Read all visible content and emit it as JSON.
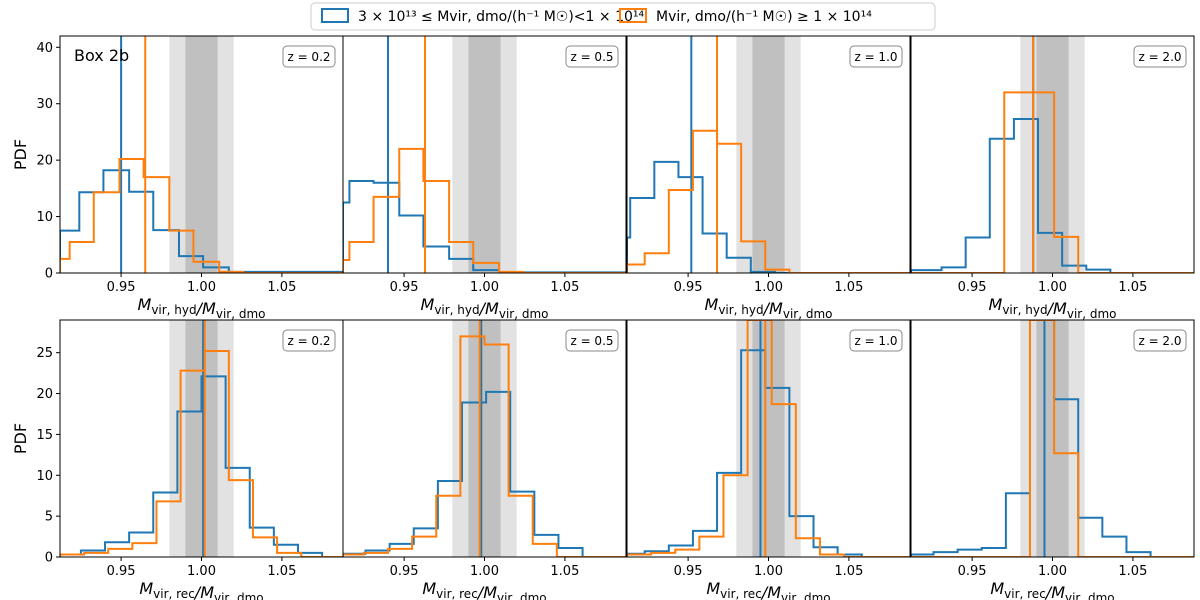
{
  "figure": {
    "box_label": "Box 2b",
    "bands": {
      "inner": [
        0.99,
        1.01
      ],
      "outer": [
        0.98,
        1.02
      ],
      "inner_color": "#c0c0c0",
      "outer_color": "#e2e2e2"
    },
    "legend": [
      {
        "label": "3 × 10¹³ ≤ Mvir, dmo/(h⁻¹ M☉)<1 × 10¹⁴",
        "color": "#1f77b4"
      },
      {
        "label": "Mvir, dmo/(h⁻¹ M☉) ≥ 1 × 10¹⁴",
        "color": "#ff7f0e"
      }
    ]
  },
  "chart_data": [
    {
      "type": "histogram",
      "row": 0,
      "col": 0,
      "badge": "z = 0.2",
      "xlabel": "Mvir, hyd/Mvir, dmo",
      "ylabel": "PDF",
      "xlim": [
        0.912,
        1.088
      ],
      "ylim": [
        0,
        42
      ],
      "yticks": [
        0,
        10,
        20,
        30,
        40
      ],
      "xticks": [
        "0.95",
        "1.00",
        "1.05"
      ],
      "series": [
        {
          "name": "3 × 10¹³ ≤ Mvir, dmo/(h⁻¹ M☉)<1 × 10¹⁴",
          "color": "#1f77b4",
          "edges": [
            0.912,
            0.924,
            0.939,
            0.955,
            0.97,
            0.986,
            1.001,
            1.017,
            1.088
          ],
          "values": [
            7.5,
            14.3,
            18.2,
            14.4,
            7.6,
            3.0,
            1.0,
            0.2
          ],
          "median": 0.95
        },
        {
          "name": "Mvir, dmo/(h⁻¹ M☉) ≥ 1 × 10¹⁴",
          "color": "#ff7f0e",
          "edges": [
            0.912,
            0.918,
            0.933,
            0.949,
            0.964,
            0.98,
            0.995,
            1.011,
            1.026,
            1.088
          ],
          "values": [
            2.5,
            5.5,
            14.3,
            20.2,
            17.0,
            7.5,
            2.0,
            0.2,
            0.0
          ],
          "median": 0.965
        }
      ]
    },
    {
      "type": "histogram",
      "row": 0,
      "col": 1,
      "badge": "z = 0.5",
      "xlabel": "Mvir, hyd/Mvir, dmo",
      "ylabel": "",
      "xlim": [
        0.912,
        1.088
      ],
      "ylim": [
        0,
        42
      ],
      "yticks": [],
      "xticks": [
        "0.95",
        "1.00",
        "1.05"
      ],
      "series": [
        {
          "name": "3 × 10¹³ ≤ Mvir, dmo/(h⁻¹ M☉)<1 × 10¹⁴",
          "color": "#1f77b4",
          "edges": [
            0.912,
            0.916,
            0.931,
            0.947,
            0.962,
            0.978,
            0.993,
            1.009,
            1.088
          ],
          "values": [
            12.5,
            16.3,
            16.0,
            10.2,
            4.7,
            2.5,
            0.5,
            0.1
          ],
          "median": 0.94
        },
        {
          "name": "Mvir, dmo/(h⁻¹ M☉) ≥ 1 × 10¹⁴",
          "color": "#ff7f0e",
          "edges": [
            0.912,
            0.916,
            0.931,
            0.947,
            0.962,
            0.978,
            0.993,
            1.009,
            1.024,
            1.088
          ],
          "values": [
            2.3,
            5.5,
            13.5,
            22.0,
            16.3,
            5.5,
            1.8,
            0.2,
            0.0
          ],
          "median": 0.963
        }
      ]
    },
    {
      "type": "histogram",
      "row": 0,
      "col": 2,
      "badge": "z = 1.0",
      "xlabel": "Mvir, hyd/Mvir, dmo",
      "ylabel": "",
      "xlim": [
        0.912,
        1.088
      ],
      "ylim": [
        0,
        42
      ],
      "yticks": [],
      "xticks": [
        "0.95",
        "1.00",
        "1.05"
      ],
      "series": [
        {
          "name": "3 × 10¹³ ≤ Mvir, dmo/(h⁻¹ M☉)<1 × 10¹⁴",
          "color": "#1f77b4",
          "edges": [
            0.912,
            0.914,
            0.929,
            0.944,
            0.959,
            0.974,
            0.989,
            1.004,
            1.088
          ],
          "values": [
            6.3,
            13.3,
            19.7,
            17.0,
            7.0,
            2.7,
            0.2,
            0.0
          ],
          "median": 0.952
        },
        {
          "name": "Mvir, dmo/(h⁻¹ M☉) ≥ 1 × 10¹⁴",
          "color": "#ff7f0e",
          "edges": [
            0.912,
            0.923,
            0.938,
            0.953,
            0.968,
            0.983,
            0.998,
            1.013,
            1.088
          ],
          "values": [
            1.5,
            3.5,
            14.7,
            25.2,
            22.9,
            5.6,
            0.6,
            0.0
          ],
          "median": 0.968
        }
      ]
    },
    {
      "type": "histogram",
      "row": 0,
      "col": 3,
      "badge": "z = 2.0",
      "xlabel": "Mvir, hyd/Mvir, dmo",
      "ylabel": "",
      "xlim": [
        0.912,
        1.088
      ],
      "ylim": [
        0,
        42
      ],
      "yticks": [],
      "xticks": [
        "0.95",
        "1.00",
        "1.05"
      ],
      "series": [
        {
          "name": "3 × 10¹³ ≤ Mvir, dmo/(h⁻¹ M☉)<1 × 10¹⁴",
          "color": "#1f77b4",
          "edges": [
            0.912,
            0.931,
            0.946,
            0.961,
            0.976,
            0.991,
            1.006,
            1.021,
            1.036,
            1.088
          ],
          "values": [
            0.5,
            1.0,
            6.3,
            23.8,
            27.3,
            7.1,
            1.3,
            0.6,
            0.0
          ],
          "median": 0.988
        },
        {
          "name": "Mvir, dmo/(h⁻¹ M☉) ≥ 1 × 10¹⁴",
          "color": "#ff7f0e",
          "edges": [
            0.912,
            0.97,
            0.985,
            1.001,
            1.016,
            1.088
          ],
          "values": [
            0.0,
            32.0,
            32.0,
            6.4,
            0.0
          ],
          "median": 0.988
        }
      ]
    },
    {
      "type": "histogram",
      "row": 1,
      "col": 0,
      "badge": "z = 0.2",
      "xlabel": "Mvir, rec/Mvir, dmo",
      "ylabel": "PDF",
      "xlim": [
        0.912,
        1.088
      ],
      "ylim": [
        0,
        29
      ],
      "yticks": [
        0,
        5,
        10,
        15,
        20,
        25
      ],
      "xticks": [
        "0.95",
        "1.00",
        "1.05"
      ],
      "series": [
        {
          "name": "3 × 10¹³ ≤ Mvir, dmo/(h⁻¹ M☉)<1 × 10¹⁴",
          "color": "#1f77b4",
          "edges": [
            0.912,
            0.925,
            0.94,
            0.955,
            0.97,
            0.985,
            1.0,
            1.015,
            1.03,
            1.045,
            1.06,
            1.075,
            1.088
          ],
          "values": [
            0.3,
            0.8,
            1.8,
            3.0,
            7.9,
            17.8,
            22.1,
            10.9,
            3.6,
            1.5,
            0.5,
            0.0
          ],
          "median": 1.001
        },
        {
          "name": "Mvir, dmo/(h⁻¹ M☉) ≥ 1 × 10¹⁴",
          "color": "#ff7f0e",
          "edges": [
            0.912,
            0.927,
            0.942,
            0.957,
            0.972,
            0.987,
            1.002,
            1.017,
            1.032,
            1.047,
            1.062,
            1.088
          ],
          "values": [
            0.3,
            0.5,
            1.0,
            1.7,
            6.8,
            22.8,
            25.2,
            9.4,
            2.4,
            0.5,
            0.0
          ],
          "median": 1.002
        }
      ]
    },
    {
      "type": "histogram",
      "row": 1,
      "col": 1,
      "badge": "z = 0.5",
      "xlabel": "Mvir, rec/Mvir, dmo",
      "ylabel": "",
      "xlim": [
        0.912,
        1.088
      ],
      "ylim": [
        0,
        29
      ],
      "yticks": [],
      "xticks": [
        "0.95",
        "1.00",
        "1.05"
      ],
      "series": [
        {
          "name": "3 × 10¹³ ≤ Mvir, dmo/(h⁻¹ M☉)<1 × 10¹⁴",
          "color": "#1f77b4",
          "edges": [
            0.912,
            0.926,
            0.941,
            0.956,
            0.971,
            0.986,
            1.001,
            1.016,
            1.031,
            1.046,
            1.061,
            1.088
          ],
          "values": [
            0.4,
            0.8,
            1.6,
            3.5,
            9.3,
            18.9,
            20.2,
            8.0,
            2.7,
            1.1,
            0.0
          ],
          "median": 0.998
        },
        {
          "name": "Mvir, dmo/(h⁻¹ M☉) ≥ 1 × 10¹⁴",
          "color": "#ff7f0e",
          "edges": [
            0.912,
            0.925,
            0.94,
            0.955,
            0.97,
            0.985,
            1.0,
            1.015,
            1.03,
            1.045,
            1.088
          ],
          "values": [
            0.3,
            0.5,
            1.0,
            2.5,
            7.5,
            27.0,
            26.0,
            7.5,
            1.6,
            0.0
          ],
          "median": 0.997
        }
      ]
    },
    {
      "type": "histogram",
      "row": 1,
      "col": 2,
      "badge": "z = 1.0",
      "xlabel": "Mvir, rec/Mvir, dmo",
      "ylabel": "",
      "xlim": [
        0.912,
        1.088
      ],
      "ylim": [
        0,
        29
      ],
      "yticks": [],
      "xticks": [
        "0.95",
        "1.00",
        "1.05"
      ],
      "series": [
        {
          "name": "3 × 10¹³ ≤ Mvir, dmo/(h⁻¹ M☉)<1 × 10¹⁴",
          "color": "#1f77b4",
          "edges": [
            0.912,
            0.923,
            0.938,
            0.953,
            0.968,
            0.983,
            0.998,
            1.013,
            1.028,
            1.043,
            1.058,
            1.088
          ],
          "values": [
            0.4,
            0.7,
            1.4,
            3.2,
            10.3,
            25.3,
            20.7,
            5.0,
            1.2,
            0.3,
            0.0
          ],
          "median": 0.995
        },
        {
          "name": "Mvir, dmo/(h⁻¹ M☉) ≥ 1 × 10¹⁴",
          "color": "#ff7f0e",
          "edges": [
            0.912,
            0.927,
            0.942,
            0.957,
            0.972,
            0.987,
            1.002,
            1.017,
            1.032,
            1.047,
            1.088
          ],
          "values": [
            0.3,
            0.5,
            0.9,
            2.5,
            10.0,
            29.0,
            18.7,
            2.3,
            0.3,
            0.0
          ],
          "median": 0.998
        }
      ]
    },
    {
      "type": "histogram",
      "row": 1,
      "col": 3,
      "badge": "z = 2.0",
      "xlabel": "Mvir, rec/Mvir, dmo",
      "ylabel": "",
      "xlim": [
        0.912,
        1.088
      ],
      "ylim": [
        0,
        29
      ],
      "yticks": [],
      "xticks": [
        "0.95",
        "1.00",
        "1.05"
      ],
      "series": [
        {
          "name": "3 × 10¹³ ≤ Mvir, dmo/(h⁻¹ M☉)<1 × 10¹⁴",
          "color": "#1f77b4",
          "edges": [
            0.912,
            0.926,
            0.941,
            0.956,
            0.971,
            0.986,
            1.001,
            1.016,
            1.031,
            1.046,
            1.061,
            1.076,
            1.088
          ],
          "values": [
            0.3,
            0.6,
            0.9,
            1.1,
            7.8,
            29.0,
            19.3,
            4.8,
            2.5,
            0.6,
            0.0,
            0.0
          ],
          "median": 0.995
        },
        {
          "name": "Mvir, dmo/(h⁻¹ M☉) ≥ 1 × 10¹⁴",
          "color": "#ff7f0e",
          "edges": [
            0.912,
            0.986,
            1.001,
            1.016,
            1.088
          ],
          "values": [
            0.0,
            29.0,
            12.7,
            0.0
          ],
          "median": 0.986
        }
      ]
    }
  ]
}
